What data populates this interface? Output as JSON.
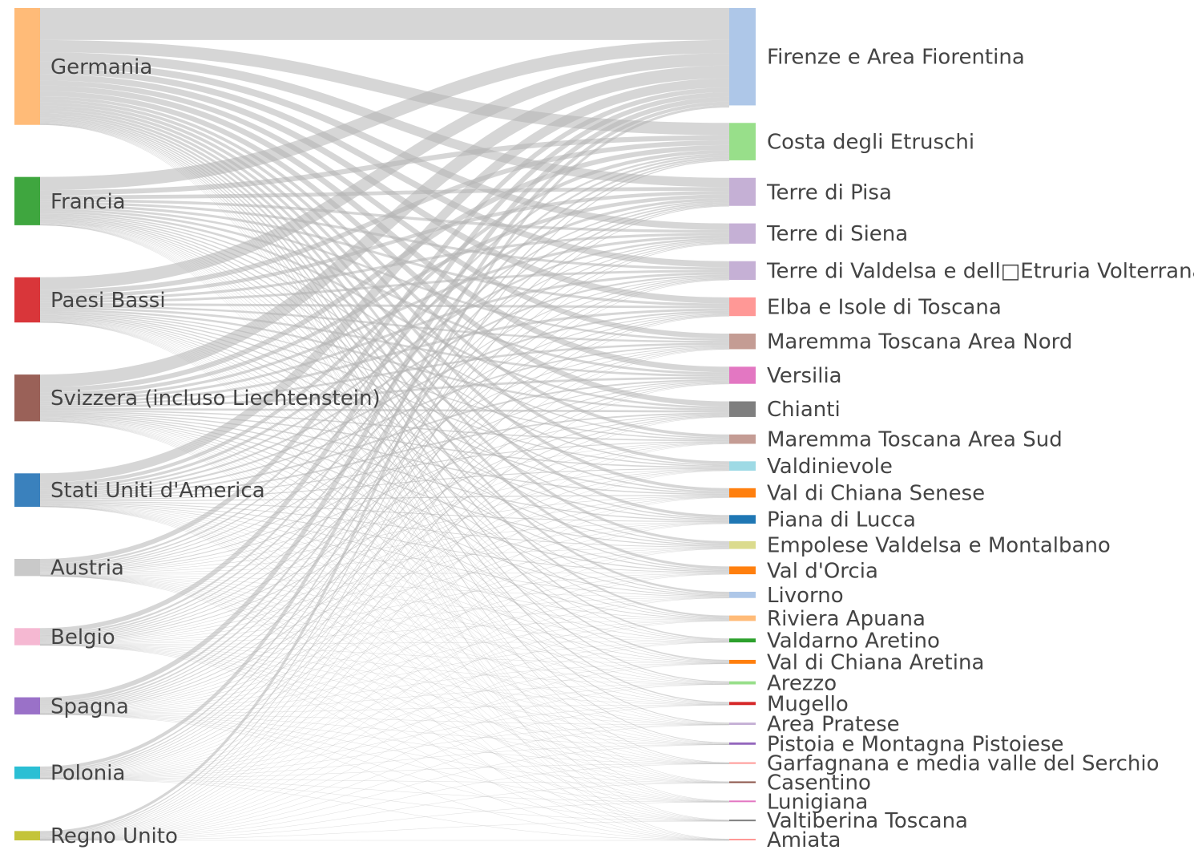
{
  "chart_data": {
    "type": "sankey",
    "sources": [
      {
        "name": "Germania",
        "color": "#ffbb78",
        "value": 150
      },
      {
        "name": "Francia",
        "color": "#3fa63f",
        "value": 62
      },
      {
        "name": "Paesi Bassi",
        "color": "#d9363a",
        "value": 58
      },
      {
        "name": "Svizzera (incluso Liechtenstein)",
        "color": "#9a6158",
        "value": 60
      },
      {
        "name": "Stati Uniti d'America",
        "color": "#3a81bd",
        "value": 43
      },
      {
        "name": "Austria",
        "color": "#c9c9c9",
        "value": 22
      },
      {
        "name": "Belgio",
        "color": "#f5b8d2",
        "value": 22
      },
      {
        "name": "Spagna",
        "color": "#9a71c8",
        "value": 22
      },
      {
        "name": "Polonia",
        "color": "#2bbfd4",
        "value": 16
      },
      {
        "name": "Regno Unito",
        "color": "#c4c43a",
        "value": 12
      }
    ],
    "targets": [
      {
        "name": "Firenze e Area Fiorentina",
        "color": "#aec7e8",
        "value": 125
      },
      {
        "name": "Costa degli Etruschi",
        "color": "#98df8a",
        "value": 48
      },
      {
        "name": "Terre di Pisa",
        "color": "#c5b0d5",
        "value": 36
      },
      {
        "name": "Terre di Siena",
        "color": "#c5b0d5",
        "value": 26
      },
      {
        "name": "Terre di Valdelsa e dell\u0000Etruria Volterrana",
        "color": "#c5b0d5",
        "value": 24
      },
      {
        "name": "Elba e Isole di Toscana",
        "color": "#ff9896",
        "value": 24
      },
      {
        "name": "Maremma Toscana Area Nord",
        "color": "#c49c94",
        "value": 20
      },
      {
        "name": "Versilia",
        "color": "#e377c2",
        "value": 22
      },
      {
        "name": "Chianti",
        "color": "#7f7f7f",
        "value": 20
      },
      {
        "name": "Maremma Toscana Area Sud",
        "color": "#c49c94",
        "value": 12
      },
      {
        "name": "Valdinievole",
        "color": "#9edae5",
        "value": 12
      },
      {
        "name": "Val di Chiana Senese",
        "color": "#ff7f0e",
        "value": 12
      },
      {
        "name": "Piana di Lucca",
        "color": "#1f77b4",
        "value": 11
      },
      {
        "name": "Empolese Valdelsa e Montalbano",
        "color": "#dbdb8d",
        "value": 10
      },
      {
        "name": "Val d'Orcia",
        "color": "#ff7f0e",
        "value": 10
      },
      {
        "name": "Livorno",
        "color": "#aec7e8",
        "value": 8
      },
      {
        "name": "Riviera Apuana",
        "color": "#ffbb78",
        "value": 7
      },
      {
        "name": "Valdarno Aretino",
        "color": "#2ca02c",
        "value": 5
      },
      {
        "name": "Val di Chiana Aretina",
        "color": "#ff7f0e",
        "value": 5
      },
      {
        "name": "Arezzo",
        "color": "#98df8a",
        "value": 4
      },
      {
        "name": "Mugello",
        "color": "#d62728",
        "value": 4
      },
      {
        "name": "Area Pratese",
        "color": "#c5b0d5",
        "value": 3
      },
      {
        "name": "Pistoia e Montagna Pistoiese",
        "color": "#9467bd",
        "value": 3
      },
      {
        "name": "Garfagnana e media valle del Serchio",
        "color": "#ff9896",
        "value": 2
      },
      {
        "name": "Casentino",
        "color": "#8c564b",
        "value": 1
      },
      {
        "name": "Lunigiana",
        "color": "#e377c2",
        "value": 1
      },
      {
        "name": "Valtiberina Toscana",
        "color": "#7f7f7f",
        "value": 1
      },
      {
        "name": "Amiata",
        "color": "#ff9896",
        "value": 1
      }
    ],
    "link_color": "#b4b4b4",
    "link_distribution": "each source flows to all destinations proportionally to destination share"
  }
}
